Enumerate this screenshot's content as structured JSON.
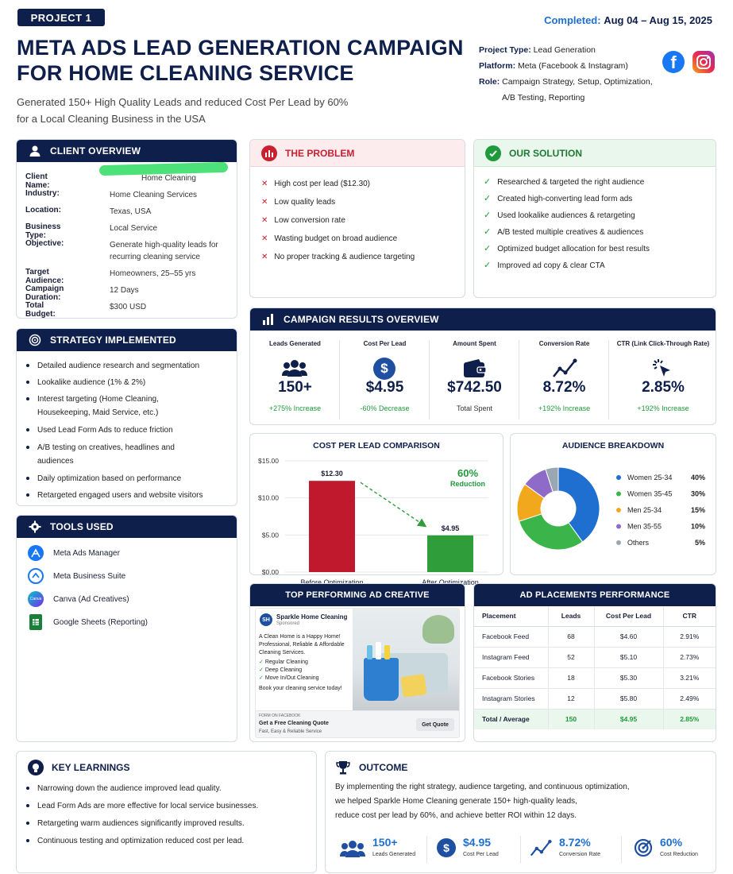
{
  "header": {
    "project_badge": "PROJECT 1",
    "completed_label": "Completed:",
    "completed_dates": "Aug 04 – Aug 15, 2025",
    "title_line1": "META ADS LEAD GENERATION CAMPAIGN",
    "title_line2": "FOR HOME CLEANING SERVICE",
    "subtitle_line1": "Generated 150+ High Quality Leads and reduced Cost Per Lead by 60%",
    "subtitle_line2": "for a Local Cleaning Business in the USA",
    "project_type_label": "Project Type:",
    "project_type": "Lead Generation",
    "platform_label": "Platform:",
    "platform": "Meta (Facebook & Instagram)",
    "role_label": "Role:",
    "role_line1": "Campaign Strategy, Setup, Optimization,",
    "role_line2": "A/B Testing, Reporting"
  },
  "client_overview": {
    "title": "CLIENT OVERVIEW",
    "rows": [
      {
        "k": "Client Name:",
        "v": "Home Cleaning"
      },
      {
        "k": "Industry:",
        "v": "Home Cleaning Services"
      },
      {
        "k": "Location:",
        "v": "Texas, USA"
      },
      {
        "k": "Business Type:",
        "v": "Local Service"
      },
      {
        "k": "Objective:",
        "v": "Generate high-quality leads for recurring cleaning service"
      },
      {
        "k": "Target Audience:",
        "v": "Homeowners, 25–55 yrs"
      },
      {
        "k": "Campaign Duration:",
        "v": "12 Days"
      },
      {
        "k": "Total Budget:",
        "v": "$300 USD"
      }
    ]
  },
  "problem": {
    "title": "THE PROBLEM",
    "items": [
      "High cost per lead ($12.30)",
      "Low quality leads",
      "Low conversion rate",
      "Wasting budget on broad audience",
      "No proper tracking & audience targeting"
    ]
  },
  "solution": {
    "title": "OUR SOLUTION",
    "items": [
      "Researched & targeted the right audience",
      "Created high-converting lead form ads",
      "Used lookalike audiences & retargeting",
      "A/B tested multiple creatives & audiences",
      "Optimized budget allocation for best results",
      "Improved ad copy & clear CTA"
    ]
  },
  "strategy": {
    "title": "STRATEGY IMPLEMENTED",
    "items": [
      "Detailed audience research and segmentation",
      "Lookalike audience (1% & 2%)",
      "Interest targeting (Home Cleaning, Housekeeping, Maid Service, etc.)",
      "Used Lead Form Ads to reduce friction",
      "A/B testing on creatives, headlines and audiences",
      "Daily optimization based on performance",
      "Retargeted engaged users and website visitors"
    ]
  },
  "tools": {
    "title": "TOOLS USED",
    "items": [
      {
        "label": "Meta Ads Manager",
        "icon": "meta-ads-manager-icon",
        "color": "#1877f2"
      },
      {
        "label": "Meta Business Suite",
        "icon": "meta-business-suite-icon",
        "color": "#1877f2"
      },
      {
        "label": "Canva (Ad Creatives)",
        "icon": "canva-icon",
        "color": "#00c4cc"
      },
      {
        "label": "Google Sheets (Reporting)",
        "icon": "google-sheets-icon",
        "color": "#188038"
      }
    ]
  },
  "results": {
    "title": "CAMPAIGN RESULTS OVERVIEW",
    "kpis": [
      {
        "label": "Leads Generated",
        "value": "150+",
        "change": "+275% Increase",
        "icon": "people-icon"
      },
      {
        "label": "Cost Per Lead",
        "value": "$4.95",
        "change": "-60% Decrease",
        "icon": "dollar-icon"
      },
      {
        "label": "Amount Spent",
        "value": "$742.50",
        "change": "Total Spent",
        "icon": "wallet-icon"
      },
      {
        "label": "Conversion Rate",
        "value": "8.72%",
        "change": "+192% Increase",
        "icon": "trend-icon"
      },
      {
        "label": "CTR (Link Click-Through Rate)",
        "value": "2.85%",
        "change": "+192% Increase",
        "icon": "click-icon"
      }
    ]
  },
  "chart_data": [
    {
      "type": "bar",
      "title": "COST PER LEAD COMPARISON",
      "categories": [
        "Before Optimization",
        "After Optimization"
      ],
      "values": [
        12.3,
        4.95
      ],
      "data_labels": [
        "$12.30",
        "$4.95"
      ],
      "yticks": [
        "$15.00",
        "$10.00",
        "$5.00",
        "$0.00"
      ],
      "ylim": [
        0,
        15
      ],
      "colors": [
        "#c0182c",
        "#2f9e3a"
      ],
      "annotation_value": "60%",
      "annotation_text": "Reduction"
    },
    {
      "type": "pie",
      "title": "AUDIENCE BREAKDOWN",
      "labels": [
        "Women 25-34",
        "Women 35-45",
        "Men 25-34",
        "Men 35-55",
        "Others"
      ],
      "values": [
        40,
        30,
        15,
        10,
        5
      ],
      "value_labels": [
        "40%",
        "30%",
        "15%",
        "10%",
        "5%"
      ],
      "colors": [
        "#1f6fd1",
        "#3bb54a",
        "#f2a81d",
        "#8e6bc9",
        "#9aa6b2"
      ]
    }
  ],
  "ad_creative": {
    "title": "TOP PERFORMING AD CREATIVE",
    "page_name": "Sparkle Home Cleaning",
    "sponsored": "Sponsored",
    "body1": "A Clean Home is a Happy Home!",
    "body2": "Professional, Reliable & Affordable",
    "body3": "Cleaning Services.",
    "bullets": [
      "Regular Cleaning",
      "Deep Cleaning",
      "Move In/Out Cleaning"
    ],
    "cta_text": "Book your cleaning service today!",
    "form_label": "FORM ON FACEBOOK",
    "form_title": "Get a Free Cleaning Quote",
    "form_sub": "Fast, Easy & Reliable Service",
    "button": "Get Quote"
  },
  "placements": {
    "title": "AD PLACEMENTS PERFORMANCE",
    "headers": [
      "Placement",
      "Leads",
      "Cost Per Lead",
      "CTR"
    ],
    "rows": [
      [
        "Facebook Feed",
        "68",
        "$4.60",
        "2.91%"
      ],
      [
        "Instagram Feed",
        "52",
        "$5.10",
        "2.73%"
      ],
      [
        "Facebook Stories",
        "18",
        "$5.30",
        "3.21%"
      ],
      [
        "Instagram Stories",
        "12",
        "$5.80",
        "2.49%"
      ]
    ],
    "total": [
      "Total / Average",
      "150",
      "$4.95",
      "2.85%"
    ]
  },
  "learnings": {
    "title": "KEY LEARNINGS",
    "items": [
      "Narrowing down the audience improved lead quality.",
      "Lead Form Ads are more effective for local service businesses.",
      "Retargeting warm audiences significantly improved results.",
      "Continuous testing and optimization reduced cost per lead."
    ]
  },
  "outcome": {
    "title": "OUTCOME",
    "text1": "By implementing the right strategy, audience targeting, and continuous optimization,",
    "text2": "we helped Sparkle Home Cleaning generate 150+ high-quality leads,",
    "text3": "reduce cost per lead by 60%, and achieve better ROI within 12 days.",
    "stats": [
      {
        "value": "150+",
        "label": "Leads Generated",
        "icon": "people-icon"
      },
      {
        "value": "$4.95",
        "label": "Cost Per Lead",
        "icon": "dollar-icon"
      },
      {
        "value": "8.72%",
        "label": "Conversion Rate",
        "icon": "trend-icon"
      },
      {
        "value": "60%",
        "label": "Cost Reduction",
        "icon": "target-icon"
      }
    ]
  },
  "colors": {
    "navy": "#0f1f4b",
    "green": "#1f9a3a",
    "red": "#c8202f",
    "blue": "#1f6fd1"
  }
}
